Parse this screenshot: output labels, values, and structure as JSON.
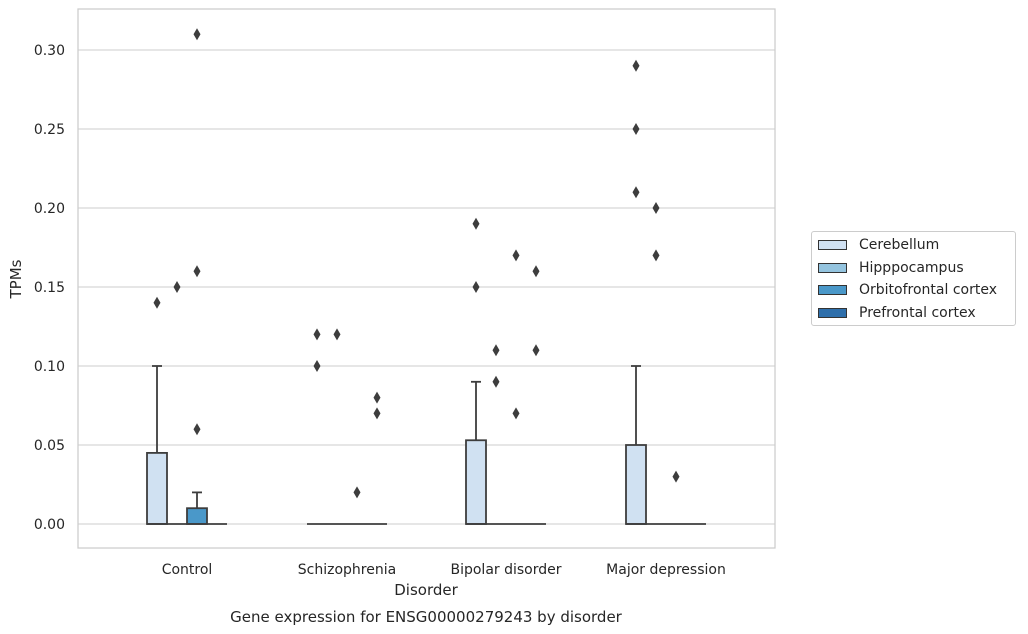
{
  "chart_data": {
    "type": "box",
    "title": "Gene expression for ENSG00000279243 by disorder",
    "xlabel": "Disorder",
    "ylabel": "TPMs",
    "ylim": [
      -0.015,
      0.326
    ],
    "yticks": [
      "0.00",
      "0.05",
      "0.10",
      "0.15",
      "0.20",
      "0.25",
      "0.30"
    ],
    "ytick_values": [
      0,
      0.05,
      0.1,
      0.15,
      0.2,
      0.25,
      0.3
    ],
    "grid": true,
    "legend_position": "right",
    "categories": [
      "Control",
      "Schizophrenia",
      "Bipolar disorder",
      "Major depression"
    ],
    "series": [
      {
        "name": "Cerebellum",
        "color": "#d0e1f2",
        "boxes": [
          {
            "q1": 0,
            "median": 0,
            "q3": 0.045,
            "whisker_low": 0,
            "whisker_high": 0.1,
            "outliers": [
              0.14
            ]
          },
          {
            "q1": 0,
            "median": 0,
            "q3": 0,
            "whisker_low": 0,
            "whisker_high": 0,
            "outliers": [
              0.1,
              0.12
            ]
          },
          {
            "q1": 0,
            "median": 0,
            "q3": 0.053,
            "whisker_low": 0,
            "whisker_high": 0.09,
            "outliers": [
              0.15,
              0.19
            ]
          },
          {
            "q1": 0,
            "median": 0,
            "q3": 0.05,
            "whisker_low": 0,
            "whisker_high": 0.1,
            "outliers": [
              0.21,
              0.25,
              0.29
            ]
          }
        ]
      },
      {
        "name": "Hipppocampus",
        "color": "#94c4df",
        "boxes": [
          {
            "q1": 0,
            "median": 0,
            "q3": 0,
            "whisker_low": 0,
            "whisker_high": 0,
            "outliers": [
              0.15
            ]
          },
          {
            "q1": 0,
            "median": 0,
            "q3": 0,
            "whisker_low": 0,
            "whisker_high": 0,
            "outliers": [
              0.12
            ]
          },
          {
            "q1": 0,
            "median": 0,
            "q3": 0,
            "whisker_low": 0,
            "whisker_high": 0,
            "outliers": [
              0.09,
              0.11
            ]
          },
          {
            "q1": 0,
            "median": 0,
            "q3": 0,
            "whisker_low": 0,
            "whisker_high": 0,
            "outliers": [
              0.17,
              0.2
            ]
          }
        ]
      },
      {
        "name": "Orbitofrontal cortex",
        "color": "#4a98c9",
        "boxes": [
          {
            "q1": 0,
            "median": 0,
            "q3": 0.01,
            "whisker_low": 0,
            "whisker_high": 0.02,
            "outliers": [
              0.06,
              0.16,
              0.31
            ]
          },
          {
            "q1": 0,
            "median": 0,
            "q3": 0,
            "whisker_low": 0,
            "whisker_high": 0,
            "outliers": [
              0.02
            ]
          },
          {
            "q1": 0,
            "median": 0,
            "q3": 0,
            "whisker_low": 0,
            "whisker_high": 0,
            "outliers": [
              0.07,
              0.17
            ]
          },
          {
            "q1": 0,
            "median": 0,
            "q3": 0,
            "whisker_low": 0,
            "whisker_high": 0,
            "outliers": [
              0.03
            ]
          }
        ]
      },
      {
        "name": "Prefrontal cortex",
        "color": "#2e6fab",
        "boxes": [
          {
            "q1": 0,
            "median": 0,
            "q3": 0,
            "whisker_low": 0,
            "whisker_high": 0,
            "outliers": []
          },
          {
            "q1": 0,
            "median": 0,
            "q3": 0,
            "whisker_low": 0,
            "whisker_high": 0,
            "outliers": [
              0.07,
              0.08
            ]
          },
          {
            "q1": 0,
            "median": 0,
            "q3": 0,
            "whisker_low": 0,
            "whisker_high": 0,
            "outliers": [
              0.11,
              0.16
            ]
          },
          {
            "q1": 0,
            "median": 0,
            "q3": 0,
            "whisker_low": 0,
            "whisker_high": 0,
            "outliers": []
          }
        ]
      }
    ]
  }
}
